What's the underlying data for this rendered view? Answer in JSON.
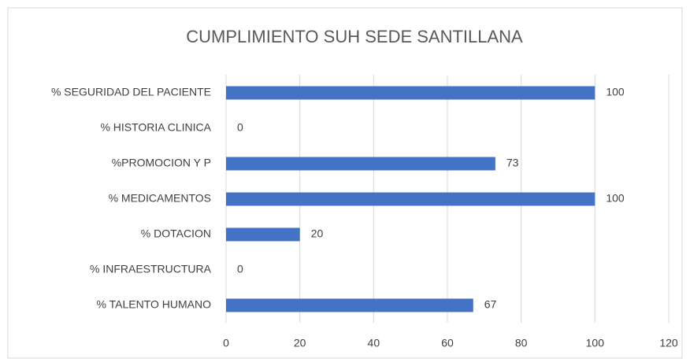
{
  "chart_data": {
    "type": "bar",
    "orientation": "horizontal",
    "title": "CUMPLIMIENTO SUH SEDE SANTILLANA",
    "categories": [
      "% SEGURIDAD DEL PACIENTE",
      "% HISTORIA CLINICA",
      "%PROMOCION Y P",
      "% MEDICAMENTOS",
      "% DOTACION",
      "% INFRAESTRUCTURA",
      "% TALENTO HUMANO"
    ],
    "values": [
      100,
      0,
      73,
      100,
      20,
      0,
      67
    ],
    "color": "#4472c4",
    "xlim": [
      0,
      120
    ],
    "xticks": [
      0,
      20,
      40,
      60,
      80,
      100,
      120
    ],
    "grid": true
  }
}
